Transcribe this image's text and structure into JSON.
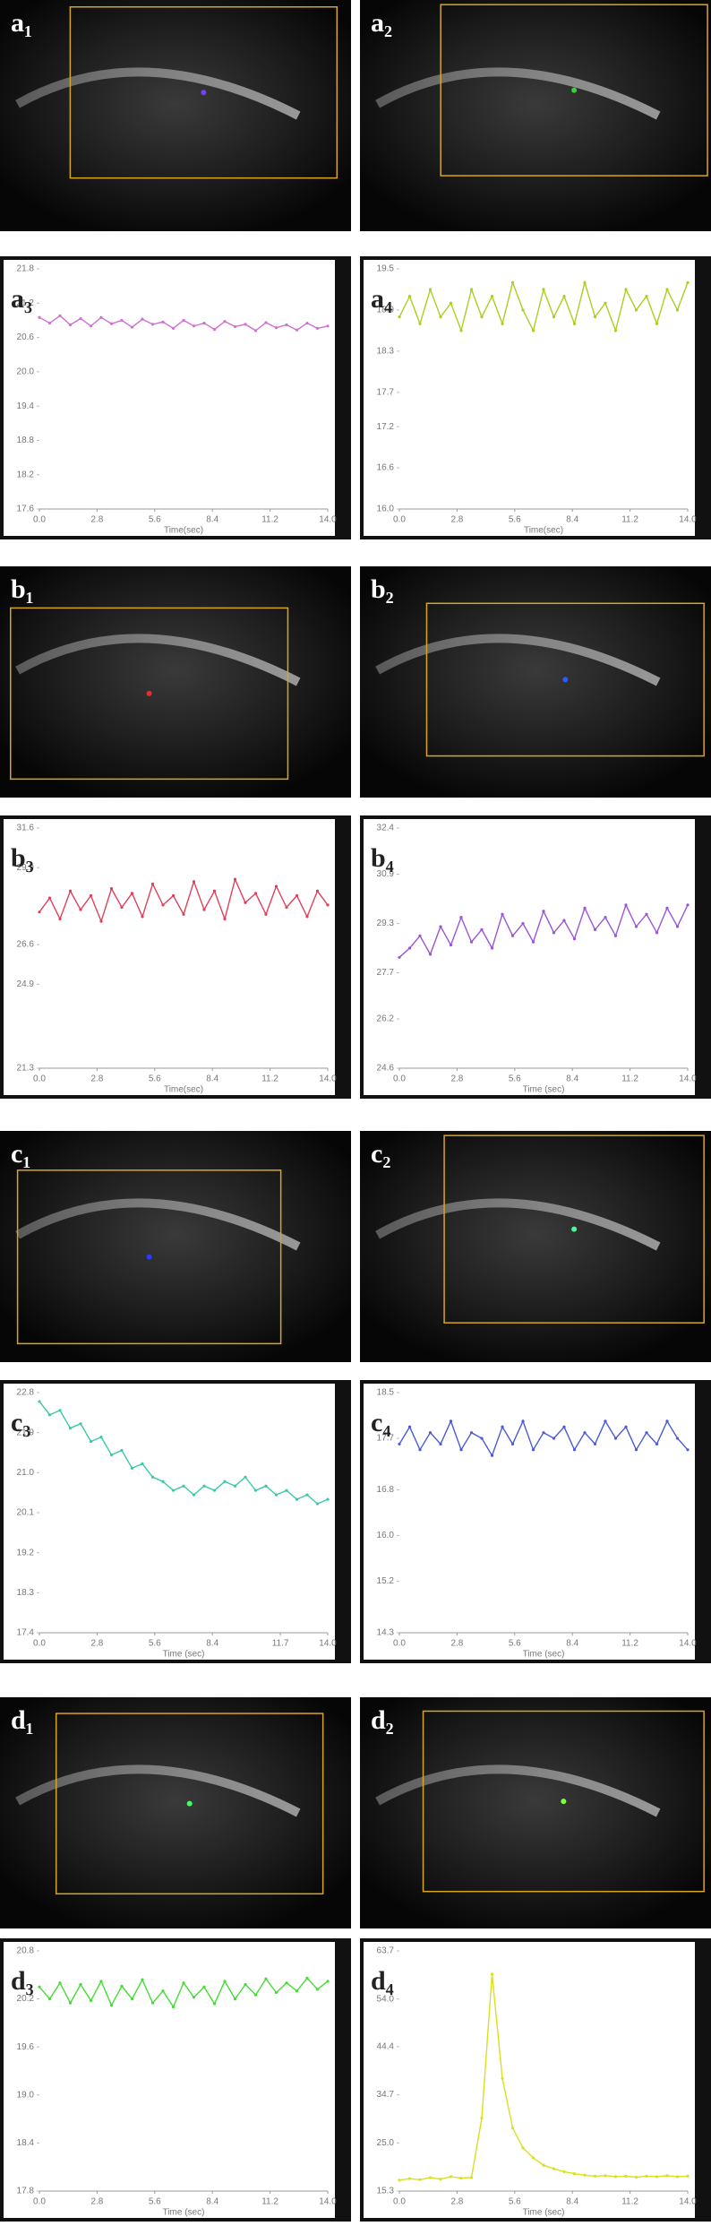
{
  "images": [
    {
      "label": "a₁"
    },
    {
      "label": "a₂"
    },
    {
      "label": "b₁"
    },
    {
      "label": "b₂"
    },
    {
      "label": "c₁"
    },
    {
      "label": "c₂"
    },
    {
      "label": "d₁"
    },
    {
      "label": "d₂"
    }
  ],
  "chart_data": [
    {
      "type": "line",
      "panel_label": "a₃",
      "xlabel": "Time(sec)",
      "x": [
        0,
        0.5,
        1,
        1.5,
        2,
        2.5,
        3,
        3.5,
        4,
        4.5,
        5,
        5.5,
        6,
        6.5,
        7,
        7.5,
        8,
        8.5,
        9,
        9.5,
        10,
        10.5,
        11,
        11.5,
        12,
        12.5,
        13,
        13.5,
        14
      ],
      "xlim": [
        0,
        14
      ],
      "xticks": [
        {
          "value": 0,
          "label": "0.0"
        },
        2.8,
        5.6,
        8.4,
        11.2,
        {
          "value": 14,
          "label": "14.0"
        }
      ],
      "ylim": [
        17.6,
        21.8
      ],
      "yticks": [
        17.6,
        18.2,
        18.8,
        19.4,
        {
          "value": 20,
          "label": "20.0"
        },
        20.6,
        21.2,
        21.8
      ],
      "series": [
        {
          "color": "#d070d0",
          "values": [
            20.95,
            20.85,
            20.98,
            20.82,
            20.93,
            20.8,
            20.95,
            20.84,
            20.9,
            20.78,
            20.92,
            20.83,
            20.87,
            20.76,
            20.9,
            20.8,
            20.85,
            20.74,
            20.88,
            20.79,
            20.83,
            20.72,
            20.86,
            20.77,
            20.82,
            20.73,
            20.85,
            20.76,
            20.8
          ]
        }
      ]
    },
    {
      "type": "line",
      "panel_label": "a₄",
      "xlabel": "Time(sec)",
      "x": [
        0,
        0.5,
        1,
        1.5,
        2,
        2.5,
        3,
        3.5,
        4,
        4.5,
        5,
        5.5,
        6,
        6.5,
        7,
        7.5,
        8,
        8.5,
        9,
        9.5,
        10,
        10.5,
        11,
        11.5,
        12,
        12.5,
        13,
        13.5,
        14
      ],
      "xlim": [
        0,
        14
      ],
      "xticks": [
        {
          "value": 0,
          "label": "0.0"
        },
        2.8,
        5.6,
        8.4,
        11.2,
        {
          "value": 14,
          "label": "14.0"
        }
      ],
      "ylim": [
        16,
        19.5
      ],
      "yticks": [
        {
          "value": 16,
          "label": "16.0"
        },
        16.6,
        17.2,
        17.7,
        18.3,
        18.9,
        19.5
      ],
      "series": [
        {
          "color": "#a8d020",
          "values": [
            18.8,
            19.1,
            18.7,
            19.2,
            18.8,
            19.0,
            18.6,
            19.2,
            18.8,
            19.1,
            18.7,
            19.3,
            18.9,
            18.6,
            19.2,
            18.8,
            19.1,
            18.7,
            19.3,
            18.8,
            19.0,
            18.6,
            19.2,
            18.9,
            19.1,
            18.7,
            19.2,
            18.9,
            19.3
          ]
        }
      ]
    },
    {
      "type": "line",
      "panel_label": "b₃",
      "xlabel": "Time(sec)",
      "x": [
        0,
        0.5,
        1,
        1.5,
        2,
        2.5,
        3,
        3.5,
        4,
        4.5,
        5,
        5.5,
        6,
        6.5,
        7,
        7.5,
        8,
        8.5,
        9,
        9.5,
        10,
        10.5,
        11,
        11.5,
        12,
        12.5,
        13,
        13.5,
        14
      ],
      "xlim": [
        0,
        14
      ],
      "xticks": [
        {
          "value": 0,
          "label": "0.0"
        },
        2.8,
        5.6,
        8.4,
        11.2,
        {
          "value": 14,
          "label": "14.0"
        }
      ],
      "ylim": [
        21.3,
        31.6
      ],
      "yticks": [
        21.3,
        24.9,
        26.6,
        29.9,
        31.6
      ],
      "series": [
        {
          "color": "#e0405a",
          "values": [
            28.0,
            28.6,
            27.7,
            28.9,
            28.1,
            28.7,
            27.6,
            29.0,
            28.2,
            28.8,
            27.8,
            29.2,
            28.3,
            28.7,
            27.9,
            29.3,
            28.1,
            28.9,
            27.7,
            29.4,
            28.4,
            28.8,
            27.9,
            29.1,
            28.2,
            28.7,
            27.8,
            28.9,
            28.3
          ]
        }
      ]
    },
    {
      "type": "line",
      "panel_label": "b₄",
      "xlabel": "Time (sec)",
      "x": [
        0,
        0.5,
        1,
        1.5,
        2,
        2.5,
        3,
        3.5,
        4,
        4.5,
        5,
        5.5,
        6,
        6.5,
        7,
        7.5,
        8,
        8.5,
        9,
        9.5,
        10,
        10.5,
        11,
        11.5,
        12,
        12.5,
        13,
        13.5,
        14
      ],
      "xlim": [
        0,
        14
      ],
      "xticks": [
        {
          "value": 0,
          "label": "0.0"
        },
        2.8,
        5.6,
        8.4,
        11.2,
        {
          "value": 14,
          "label": "14.0"
        }
      ],
      "ylim": [
        24.6,
        32.4
      ],
      "yticks": [
        24.6,
        26.2,
        27.7,
        29.3,
        30.9,
        32.4
      ],
      "series": [
        {
          "color": "#9a55d8",
          "values": [
            28.2,
            28.5,
            28.9,
            28.3,
            29.2,
            28.6,
            29.5,
            28.7,
            29.1,
            28.5,
            29.6,
            28.9,
            29.3,
            28.7,
            29.7,
            29.0,
            29.4,
            28.8,
            29.8,
            29.1,
            29.5,
            28.9,
            29.9,
            29.2,
            29.6,
            29.0,
            29.8,
            29.2,
            29.9
          ]
        }
      ]
    },
    {
      "type": "line",
      "panel_label": "c₃",
      "xlabel": "Time (sec)",
      "x": [
        0,
        0.5,
        1,
        1.5,
        2,
        2.5,
        3,
        3.5,
        4,
        4.5,
        5,
        5.5,
        6,
        6.5,
        7,
        7.5,
        8,
        8.5,
        9,
        9.5,
        10,
        10.5,
        11,
        11.5,
        12,
        12.5,
        13,
        13.5,
        14
      ],
      "xlim": [
        0,
        14
      ],
      "xticks": [
        {
          "value": 0,
          "label": "0.0"
        },
        2.8,
        5.6,
        8.4,
        11.7,
        {
          "value": 14,
          "label": "14.0"
        }
      ],
      "ylim": [
        17.4,
        22.8
      ],
      "yticks": [
        17.4,
        18.3,
        19.2,
        20.1,
        {
          "value": 21,
          "label": "21.0"
        },
        21.9,
        22.8
      ],
      "series": [
        {
          "color": "#3cc8a8",
          "values": [
            22.6,
            22.3,
            22.4,
            22.0,
            22.1,
            21.7,
            21.8,
            21.4,
            21.5,
            21.1,
            21.2,
            20.9,
            20.8,
            20.6,
            20.7,
            20.5,
            20.7,
            20.6,
            20.8,
            20.7,
            20.9,
            20.6,
            20.7,
            20.5,
            20.6,
            20.4,
            20.5,
            20.3,
            20.4
          ]
        }
      ]
    },
    {
      "type": "line",
      "panel_label": "c₄",
      "xlabel": "Time (sec)",
      "x": [
        0,
        0.5,
        1,
        1.5,
        2,
        2.5,
        3,
        3.5,
        4,
        4.5,
        5,
        5.5,
        6,
        6.5,
        7,
        7.5,
        8,
        8.5,
        9,
        9.5,
        10,
        10.5,
        11,
        11.5,
        12,
        12.5,
        13,
        13.5,
        14
      ],
      "xlim": [
        0,
        14
      ],
      "xticks": [
        {
          "value": 0,
          "label": "0.0"
        },
        2.8,
        5.6,
        8.4,
        11.2,
        {
          "value": 14,
          "label": "14.0"
        }
      ],
      "ylim": [
        14.3,
        18.5
      ],
      "yticks": [
        14.3,
        15.2,
        {
          "value": 16,
          "label": "16.0"
        },
        16.8,
        17.7,
        18.5
      ],
      "series": [
        {
          "color": "#4a5ad8",
          "values": [
            17.6,
            17.9,
            17.5,
            17.8,
            17.6,
            18.0,
            17.5,
            17.8,
            17.7,
            17.4,
            17.9,
            17.6,
            18.0,
            17.5,
            17.8,
            17.7,
            17.9,
            17.5,
            17.8,
            17.6,
            18.0,
            17.7,
            17.9,
            17.5,
            17.8,
            17.6,
            18.0,
            17.7,
            17.5
          ]
        }
      ]
    },
    {
      "type": "line",
      "panel_label": "d₃",
      "xlabel": "Time (sec)",
      "x": [
        0,
        0.5,
        1,
        1.5,
        2,
        2.5,
        3,
        3.5,
        4,
        4.5,
        5,
        5.5,
        6,
        6.5,
        7,
        7.5,
        8,
        8.5,
        9,
        9.5,
        10,
        10.5,
        11,
        11.5,
        12,
        12.5,
        13,
        13.5,
        14
      ],
      "xlim": [
        0,
        14
      ],
      "xticks": [
        {
          "value": 0,
          "label": "0.0"
        },
        2.8,
        5.6,
        8.4,
        11.2,
        {
          "value": 14,
          "label": "14.0"
        }
      ],
      "ylim": [
        17.8,
        20.8
      ],
      "yticks": [
        17.8,
        18.4,
        {
          "value": 19,
          "label": "19.0"
        },
        19.6,
        20.2,
        20.8
      ],
      "series": [
        {
          "color": "#44dd33",
          "values": [
            20.35,
            20.2,
            20.4,
            20.15,
            20.38,
            20.18,
            20.42,
            20.12,
            20.36,
            20.2,
            20.44,
            20.15,
            20.3,
            20.1,
            20.4,
            20.22,
            20.35,
            20.14,
            20.42,
            20.2,
            20.38,
            20.25,
            20.45,
            20.28,
            20.4,
            20.3,
            20.46,
            20.32,
            20.42
          ]
        }
      ]
    },
    {
      "type": "line",
      "panel_label": "d₄",
      "xlabel": "Time (sec)",
      "x": [
        0,
        0.5,
        1,
        1.5,
        2,
        2.5,
        3,
        3.5,
        4,
        4.5,
        5,
        5.5,
        6,
        6.5,
        7,
        7.5,
        8,
        8.5,
        9,
        9.5,
        10,
        10.5,
        11,
        11.5,
        12,
        12.5,
        13,
        13.5,
        14
      ],
      "xlim": [
        0,
        14
      ],
      "xticks": [
        {
          "value": 0,
          "label": "0.0"
        },
        2.8,
        5.6,
        8.4,
        11.2,
        {
          "value": 14,
          "label": "14.0"
        }
      ],
      "ylim": [
        15.3,
        63.7
      ],
      "yticks": [
        15.3,
        {
          "value": 25,
          "label": "25.0"
        },
        34.7,
        44.4,
        {
          "value": 54,
          "label": "54.0"
        },
        63.7
      ],
      "series": [
        {
          "color": "#d8e020",
          "values": [
            17.5,
            17.8,
            17.6,
            18.0,
            17.7,
            18.2,
            17.9,
            18.0,
            30.0,
            59.0,
            38.0,
            28.0,
            24.0,
            22.0,
            20.5,
            19.8,
            19.2,
            18.8,
            18.5,
            18.3,
            18.4,
            18.2,
            18.3,
            18.1,
            18.3,
            18.2,
            18.4,
            18.2,
            18.3
          ]
        }
      ]
    }
  ]
}
